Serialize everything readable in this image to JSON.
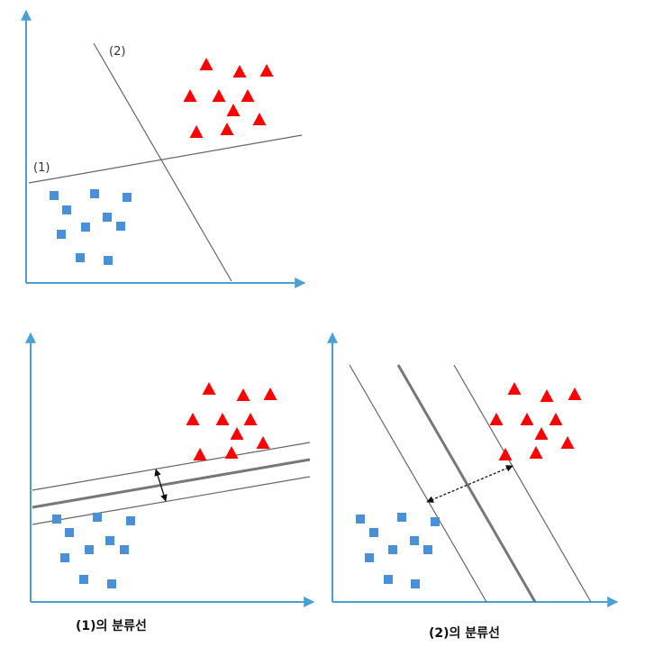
{
  "labels": {
    "line1": "(1)",
    "line2": "(2)"
  },
  "captions": {
    "left": "(1)의 분류선",
    "right": "(2)의 분류선"
  },
  "colors": {
    "axis": "#4a9fd8",
    "square": "#4a90d9",
    "triangle": "#ff0000",
    "line": "#666666",
    "arrow": "#111111"
  }
}
